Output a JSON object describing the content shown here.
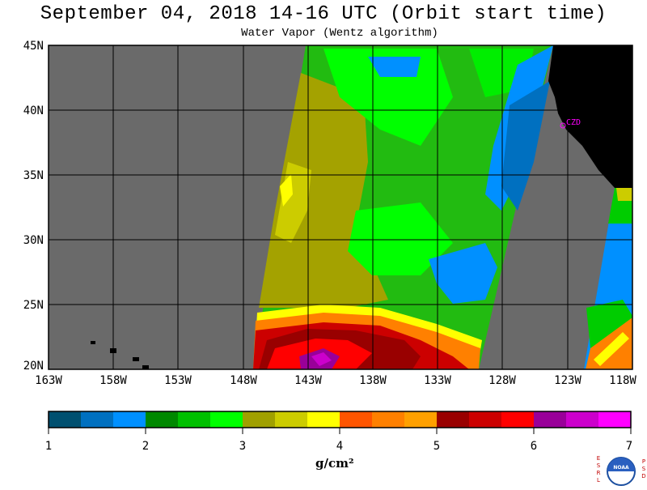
{
  "title": "September 04, 2018  14-16 UTC  (Orbit start time)",
  "subtitle": "Water Vapor (Wentz algorithm)",
  "lat_labels": [
    "45N",
    "40N",
    "35N",
    "30N",
    "25N",
    "20N"
  ],
  "lon_labels": [
    "163W",
    "158W",
    "153W",
    "148W",
    "143W",
    "138W",
    "133W",
    "128W",
    "123W",
    "118W"
  ],
  "station": "CZD",
  "colorbar": {
    "ticks": [
      "1",
      "2",
      "3",
      "4",
      "5",
      "6",
      "7"
    ],
    "units": "g/cm²",
    "colors": [
      "#005070",
      "#0070c0",
      "#0090ff",
      "#008800",
      "#00c000",
      "#00ff00",
      "#a0a000",
      "#cccc00",
      "#ffff00",
      "#ff5500",
      "#ff8000",
      "#ffa000",
      "#990000",
      "#cc0000",
      "#ff0000",
      "#990099",
      "#cc00cc",
      "#ff00ff"
    ]
  },
  "logo": {
    "left_letters": [
      "E",
      "S",
      "R",
      "L"
    ],
    "right_letters": [
      "P",
      "S",
      "D"
    ],
    "center_text": "NOAA"
  }
}
